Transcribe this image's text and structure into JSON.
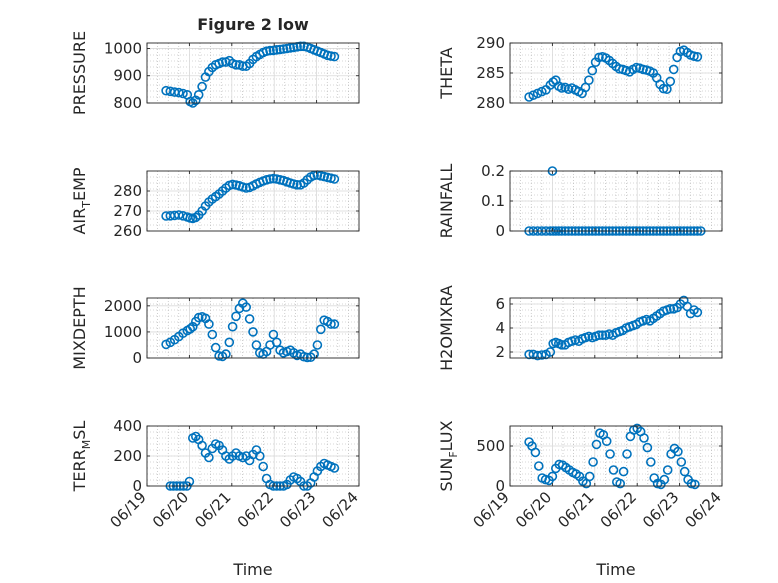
{
  "figure": {
    "title": "Figure 2 low"
  },
  "style": {
    "marker_color": "#0072BD",
    "axis_color": "#262626",
    "grid_color": "#b0b0b0"
  },
  "chart_data": [
    {
      "type": "scatter",
      "id": "pressure",
      "title": "Figure 2 low",
      "xlabel": "",
      "ylabel": "PRESSURE",
      "xlim": [
        0,
        5
      ],
      "ylim": [
        800,
        1020
      ],
      "yticks": [
        800,
        900,
        1000
      ],
      "ytick_labels": [
        "800",
        "900",
        "1000"
      ],
      "grid": true,
      "minor_grid": true,
      "x": [
        0.45,
        0.55,
        0.65,
        0.75,
        0.85,
        0.95,
        1.02,
        1.08,
        1.15,
        1.22,
        1.3,
        1.38,
        1.46,
        1.54,
        1.62,
        1.7,
        1.78,
        1.86,
        1.94,
        2.02,
        2.1,
        2.18,
        2.26,
        2.34,
        2.42,
        2.5,
        2.58,
        2.66,
        2.74,
        2.82,
        2.9,
        2.98,
        3.06,
        3.14,
        3.22,
        3.3,
        3.38,
        3.46,
        3.54,
        3.62,
        3.7,
        3.78,
        3.86,
        3.94,
        4.02,
        4.1,
        4.18,
        4.26,
        4.34,
        4.42
      ],
      "y": [
        845,
        843,
        840,
        838,
        835,
        830,
        805,
        800,
        810,
        830,
        860,
        895,
        915,
        930,
        940,
        945,
        950,
        950,
        955,
        945,
        940,
        940,
        935,
        935,
        945,
        960,
        970,
        978,
        985,
        990,
        992,
        993,
        995,
        996,
        998,
        1000,
        1002,
        1004,
        1006,
        1008,
        1008,
        1005,
        1000,
        995,
        990,
        985,
        980,
        975,
        972,
        970
      ]
    },
    {
      "type": "scatter",
      "id": "theta",
      "title": "",
      "xlabel": "",
      "ylabel": "THETA",
      "xlim": [
        0,
        5
      ],
      "ylim": [
        280,
        290
      ],
      "yticks": [
        280,
        285,
        290
      ],
      "ytick_labels": [
        "280",
        "285",
        "290"
      ],
      "grid": true,
      "minor_grid": true,
      "x": [
        0.45,
        0.55,
        0.65,
        0.75,
        0.85,
        0.95,
        1.02,
        1.08,
        1.15,
        1.22,
        1.3,
        1.38,
        1.46,
        1.54,
        1.62,
        1.7,
        1.78,
        1.86,
        1.94,
        2.02,
        2.1,
        2.18,
        2.26,
        2.34,
        2.42,
        2.5,
        2.58,
        2.66,
        2.74,
        2.82,
        2.9,
        2.98,
        3.06,
        3.14,
        3.22,
        3.3,
        3.38,
        3.46,
        3.54,
        3.62,
        3.7,
        3.78,
        3.86,
        3.94,
        4.02,
        4.1,
        4.18,
        4.26,
        4.34,
        4.42
      ],
      "y": [
        281.0,
        281.3,
        281.6,
        281.9,
        282.2,
        283.0,
        283.5,
        283.8,
        282.8,
        282.5,
        282.6,
        282.3,
        282.5,
        282.2,
        281.9,
        281.6,
        282.6,
        283.8,
        285.4,
        286.8,
        287.6,
        287.7,
        287.5,
        287.1,
        286.6,
        286.1,
        285.7,
        285.6,
        285.4,
        285.2,
        285.6,
        285.9,
        285.8,
        285.6,
        285.5,
        285.3,
        285.0,
        284.2,
        283.1,
        282.4,
        282.3,
        283.6,
        285.6,
        287.6,
        288.6,
        288.8,
        288.4,
        288.0,
        287.8,
        287.7
      ]
    },
    {
      "type": "scatter",
      "id": "air-temp",
      "title": "",
      "xlabel": "",
      "ylabel": "AIR_TEMP",
      "ylabel_main": "AIR",
      "ylabel_sub": "T",
      "ylabel_tail": "EMP",
      "xlim": [
        0,
        5
      ],
      "ylim": [
        260,
        290
      ],
      "yticks": [
        260,
        270,
        280
      ],
      "ytick_labels": [
        "260",
        "270",
        "280"
      ],
      "grid": true,
      "minor_grid": true,
      "x": [
        0.45,
        0.55,
        0.65,
        0.75,
        0.85,
        0.95,
        1.02,
        1.08,
        1.15,
        1.22,
        1.3,
        1.38,
        1.46,
        1.54,
        1.62,
        1.7,
        1.78,
        1.86,
        1.94,
        2.02,
        2.1,
        2.18,
        2.26,
        2.34,
        2.42,
        2.5,
        2.58,
        2.66,
        2.74,
        2.82,
        2.9,
        2.98,
        3.06,
        3.14,
        3.22,
        3.3,
        3.38,
        3.46,
        3.54,
        3.62,
        3.7,
        3.78,
        3.86,
        3.94,
        4.02,
        4.1,
        4.18,
        4.26,
        4.34,
        4.42
      ],
      "y": [
        267.5,
        267.6,
        267.8,
        268.0,
        267.6,
        267.0,
        266.5,
        266.3,
        266.8,
        268.0,
        270.0,
        272.5,
        274.5,
        276.0,
        277.2,
        278.5,
        280.0,
        281.5,
        282.8,
        283.3,
        283.0,
        282.6,
        282.0,
        281.5,
        281.8,
        282.6,
        283.5,
        284.3,
        285.0,
        285.6,
        286.0,
        286.2,
        286.0,
        285.6,
        285.2,
        284.6,
        284.0,
        283.5,
        283.1,
        283.1,
        284.0,
        285.6,
        287.0,
        287.8,
        288.0,
        287.6,
        287.2,
        286.8,
        286.4,
        286.0
      ]
    },
    {
      "type": "scatter",
      "id": "rainfall",
      "title": "",
      "xlabel": "",
      "ylabel": "RAINFALL",
      "xlim": [
        0,
        5
      ],
      "ylim": [
        0,
        0.2
      ],
      "yticks": [
        0,
        0.1,
        0.2
      ],
      "ytick_labels": [
        "0",
        "0.1",
        "0.2"
      ],
      "grid": true,
      "minor_grid": true,
      "x": [
        0.45,
        0.55,
        0.65,
        0.75,
        0.85,
        0.95,
        1.02,
        1.08,
        1.15,
        1.22,
        1.3,
        1.38,
        1.46,
        1.54,
        1.62,
        1.7,
        1.78,
        1.86,
        1.94,
        2.02,
        2.1,
        2.18,
        2.26,
        2.34,
        2.42,
        2.5,
        2.58,
        2.66,
        2.74,
        2.82,
        2.9,
        2.98,
        3.06,
        3.14,
        3.22,
        3.3,
        3.38,
        3.46,
        3.54,
        3.62,
        3.7,
        3.78,
        3.86,
        3.94,
        4.02,
        4.1,
        4.18,
        4.26,
        4.34,
        4.42,
        4.5,
        1.0
      ],
      "y": [
        0,
        0,
        0,
        0,
        0,
        0,
        0,
        0,
        0,
        0,
        0,
        0,
        0,
        0,
        0,
        0,
        0,
        0,
        0,
        0,
        0,
        0,
        0,
        0,
        0,
        0,
        0,
        0,
        0,
        0,
        0,
        0,
        0,
        0,
        0,
        0,
        0,
        0,
        0,
        0,
        0,
        0,
        0,
        0,
        0,
        0,
        0,
        0,
        0,
        0,
        0,
        0.2
      ]
    },
    {
      "type": "scatter",
      "id": "mixdepth",
      "title": "",
      "xlabel": "",
      "ylabel": "MIXDEPTH",
      "xlim": [
        0,
        5
      ],
      "ylim": [
        0,
        2300
      ],
      "yticks": [
        0,
        1000,
        2000
      ],
      "ytick_labels": [
        "0",
        "1000",
        "2000"
      ],
      "grid": true,
      "minor_grid": true,
      "x": [
        0.45,
        0.55,
        0.65,
        0.75,
        0.85,
        0.95,
        1.02,
        1.08,
        1.15,
        1.22,
        1.3,
        1.38,
        1.46,
        1.54,
        1.62,
        1.7,
        1.78,
        1.86,
        1.94,
        2.02,
        2.1,
        2.18,
        2.26,
        2.34,
        2.42,
        2.5,
        2.58,
        2.66,
        2.74,
        2.82,
        2.9,
        2.98,
        3.06,
        3.14,
        3.22,
        3.3,
        3.38,
        3.46,
        3.54,
        3.62,
        3.7,
        3.78,
        3.86,
        3.94,
        4.02,
        4.1,
        4.18,
        4.26,
        4.34,
        4.42
      ],
      "y": [
        520,
        600,
        700,
        820,
        950,
        1050,
        1120,
        1200,
        1400,
        1550,
        1580,
        1520,
        1300,
        900,
        400,
        80,
        60,
        150,
        600,
        1200,
        1600,
        1900,
        2100,
        1950,
        1500,
        1000,
        500,
        200,
        150,
        250,
        500,
        900,
        600,
        300,
        200,
        250,
        300,
        200,
        100,
        150,
        50,
        20,
        30,
        150,
        500,
        1100,
        1450,
        1400,
        1300,
        1300
      ]
    },
    {
      "type": "scatter",
      "id": "h2omixra",
      "title": "",
      "xlabel": "",
      "ylabel": "H2OMIXRA",
      "xlim": [
        0,
        5
      ],
      "ylim": [
        1.5,
        6.5
      ],
      "yticks": [
        2,
        4,
        6
      ],
      "ytick_labels": [
        "2",
        "4",
        "6"
      ],
      "grid": true,
      "minor_grid": true,
      "x": [
        0.45,
        0.55,
        0.65,
        0.75,
        0.85,
        0.95,
        1.02,
        1.08,
        1.15,
        1.22,
        1.3,
        1.38,
        1.46,
        1.54,
        1.62,
        1.7,
        1.78,
        1.86,
        1.94,
        2.02,
        2.1,
        2.18,
        2.26,
        2.34,
        2.42,
        2.5,
        2.58,
        2.66,
        2.74,
        2.82,
        2.9,
        2.98,
        3.06,
        3.14,
        3.22,
        3.3,
        3.38,
        3.46,
        3.54,
        3.62,
        3.7,
        3.78,
        3.86,
        3.94,
        4.02,
        4.1,
        4.18,
        4.26,
        4.34,
        4.42
      ],
      "y": [
        1.8,
        1.8,
        1.7,
        1.75,
        1.8,
        2.0,
        2.7,
        2.8,
        2.7,
        2.6,
        2.6,
        2.8,
        2.9,
        3.0,
        2.9,
        3.1,
        3.2,
        3.3,
        3.2,
        3.3,
        3.4,
        3.4,
        3.4,
        3.5,
        3.4,
        3.6,
        3.7,
        3.8,
        4.0,
        4.1,
        4.2,
        4.3,
        4.5,
        4.6,
        4.7,
        4.6,
        4.8,
        5.0,
        5.2,
        5.4,
        5.5,
        5.6,
        5.6,
        5.7,
        6.0,
        6.3,
        5.8,
        5.2,
        5.5,
        5.3
      ]
    },
    {
      "type": "scatter",
      "id": "terr-msl",
      "title": "",
      "xlabel": "Time",
      "ylabel": "TERR_MSL",
      "ylabel_main": "TERR",
      "ylabel_sub": "M",
      "ylabel_tail": "SL",
      "xlim": [
        0,
        5
      ],
      "ylim": [
        0,
        400
      ],
      "yticks": [
        0,
        200,
        400
      ],
      "ytick_labels": [
        "0",
        "200",
        "400"
      ],
      "xticks": [
        0,
        1,
        2,
        3,
        4,
        5
      ],
      "xtick_labels": [
        "06/19",
        "06/20",
        "06/21",
        "06/22",
        "06/23",
        "06/24"
      ],
      "grid": true,
      "minor_grid": true,
      "x": [
        0.55,
        0.62,
        0.7,
        0.78,
        0.86,
        0.94,
        1.0,
        1.08,
        1.15,
        1.22,
        1.3,
        1.38,
        1.46,
        1.54,
        1.62,
        1.7,
        1.78,
        1.86,
        1.94,
        2.02,
        2.1,
        2.18,
        2.26,
        2.34,
        2.42,
        2.5,
        2.58,
        2.66,
        2.74,
        2.82,
        2.9,
        2.98,
        3.06,
        3.14,
        3.22,
        3.3,
        3.38,
        3.46,
        3.54,
        3.62,
        3.7,
        3.78,
        3.86,
        3.94,
        4.02,
        4.1,
        4.18,
        4.26,
        4.34,
        4.42
      ],
      "y": [
        0,
        0,
        0,
        0,
        0,
        0,
        30,
        320,
        330,
        310,
        270,
        220,
        190,
        250,
        280,
        270,
        240,
        200,
        180,
        200,
        220,
        200,
        190,
        200,
        170,
        210,
        240,
        200,
        130,
        50,
        10,
        0,
        0,
        0,
        0,
        10,
        40,
        60,
        50,
        30,
        0,
        0,
        20,
        60,
        100,
        130,
        150,
        140,
        130,
        120
      ]
    },
    {
      "type": "scatter",
      "id": "sun-flux",
      "title": "",
      "xlabel": "Time",
      "ylabel": "SUN_FLUX",
      "ylabel_main": "SUN",
      "ylabel_sub": "F",
      "ylabel_tail": "LUX",
      "xlim": [
        0,
        5
      ],
      "ylim": [
        0,
        750
      ],
      "yticks": [
        0,
        500
      ],
      "ytick_labels": [
        "0",
        "500"
      ],
      "xticks": [
        0,
        1,
        2,
        3,
        4,
        5
      ],
      "xtick_labels": [
        "06/19",
        "06/20",
        "06/21",
        "06/22",
        "06/23",
        "06/24"
      ],
      "grid": true,
      "minor_grid": true,
      "x": [
        0.45,
        0.52,
        0.6,
        0.68,
        0.76,
        0.84,
        0.92,
        1.0,
        1.08,
        1.16,
        1.24,
        1.32,
        1.4,
        1.48,
        1.56,
        1.64,
        1.72,
        1.8,
        1.88,
        1.96,
        2.04,
        2.12,
        2.2,
        2.28,
        2.36,
        2.44,
        2.52,
        2.6,
        2.68,
        2.76,
        2.84,
        2.92,
        3.0,
        3.08,
        3.16,
        3.24,
        3.32,
        3.4,
        3.48,
        3.56,
        3.64,
        3.72,
        3.8,
        3.88,
        3.96,
        4.04,
        4.12,
        4.2,
        4.28,
        4.36
      ],
      "y": [
        550,
        500,
        420,
        250,
        100,
        80,
        70,
        120,
        220,
        270,
        260,
        230,
        200,
        170,
        150,
        120,
        60,
        30,
        120,
        300,
        520,
        660,
        640,
        560,
        400,
        200,
        50,
        30,
        180,
        400,
        620,
        700,
        720,
        680,
        600,
        480,
        300,
        100,
        30,
        20,
        80,
        200,
        400,
        470,
        430,
        300,
        180,
        80,
        30,
        20
      ]
    }
  ]
}
